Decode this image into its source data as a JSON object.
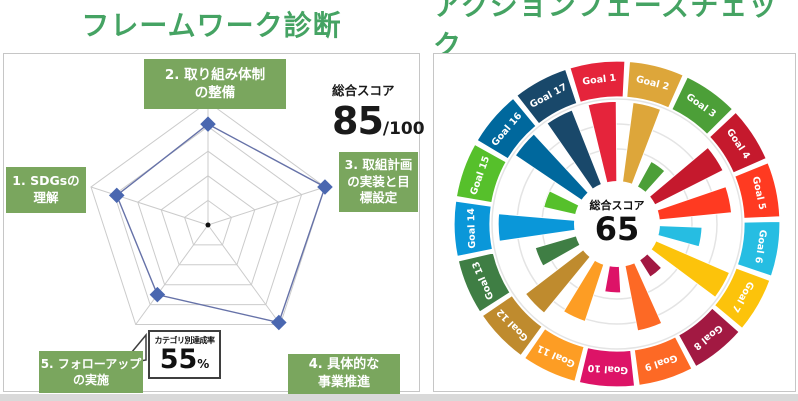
{
  "page": {
    "divider_color": "#d9d9d9"
  },
  "left_panel": {
    "title": "フレームワーク診断",
    "title_color": "#45a363",
    "score_label": "総合スコア",
    "score_value": "85",
    "score_max": "/100",
    "label_bg": "#7aa65e",
    "labels": [
      {
        "lines": [
          "1. SDGsの",
          "理解"
        ]
      },
      {
        "lines": [
          "2. 取り組み体制",
          "の整備"
        ]
      },
      {
        "lines": [
          "3. 取組計画",
          "の実装と目",
          "標設定"
        ]
      },
      {
        "lines": [
          "4. 具体的な",
          "事業推進"
        ]
      },
      {
        "lines": [
          "5. フォローアップ",
          "の実施"
        ]
      }
    ],
    "callout": {
      "label": "カテゴリ別達成率",
      "value": "55",
      "unit": "%"
    }
  },
  "right_panel": {
    "title": "アクションフェーズチェック",
    "title_color": "#45a363",
    "center": {
      "label": "総合スコア",
      "value": "65"
    }
  },
  "chart_data": [
    {
      "type": "radar",
      "title": "フレームワーク診断",
      "categories": [
        "1. SDGsの理解",
        "2. 取り組み体制の整備",
        "3. 取組計画の実装と目標設定",
        "4. 具体的な事業推進",
        "5. フォローアップの実施"
      ],
      "values": [
        78,
        82,
        100,
        98,
        70
      ],
      "max": 100,
      "levels": 5,
      "overall_score": 85,
      "grid_color": "#cbcbcb",
      "line_color": "#6672a8",
      "marker_color": "#4a67b0",
      "annotation": {
        "label": "カテゴリ別達成率",
        "value": 55,
        "unit": "%"
      }
    },
    {
      "type": "bar",
      "subtype": "polar-bar",
      "title": "アクションフェーズチェック",
      "categories": [
        "Goal 1",
        "Goal 2",
        "Goal 3",
        "Goal 4",
        "Goal 5",
        "Goal 6",
        "Goal 7",
        "Goal 8",
        "Goal 9",
        "Goal 10",
        "Goal 11",
        "Goal 12",
        "Goal 13",
        "Goal 14",
        "Goal 15",
        "Goal 16",
        "Goal 17"
      ],
      "values": [
        98,
        98,
        57,
        95,
        92,
        68,
        98,
        50,
        87,
        55,
        82,
        92,
        68,
        95,
        60,
        98,
        98
      ],
      "colors": [
        "#E5243B",
        "#DDA63A",
        "#4C9F38",
        "#C5192D",
        "#FF3A21",
        "#26BDE2",
        "#FCC30B",
        "#A21942",
        "#FD6925",
        "#DD1367",
        "#FD9D24",
        "#BF8B2E",
        "#3F7E44",
        "#0A97D9",
        "#56C02B",
        "#00689D",
        "#19486A"
      ],
      "ylim": [
        0,
        100
      ],
      "overall_score": 65,
      "grid_color": "#e4e4e4",
      "rotation_offset_deg": -7,
      "legend_position": "outer-ring"
    }
  ]
}
